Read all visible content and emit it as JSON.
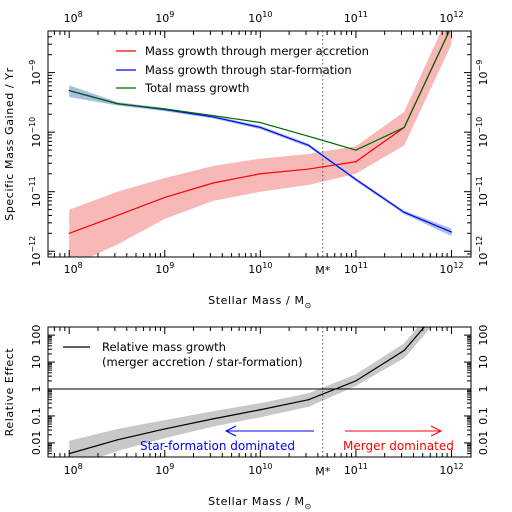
{
  "chart_data": [
    {
      "type": "line",
      "xlabel": "Stellar Mass / M",
      "xlabel_sub": "⊙",
      "ylabel": "Specific Mass Gained / Yr",
      "x_scale": "log",
      "y_scale": "log",
      "xlim": [
        60000000.0,
        1600000000000.0
      ],
      "ylim": [
        8e-13,
        5e-09
      ],
      "x_ticks": [
        {
          "value": 100000000.0,
          "base": "10",
          "exp": "8"
        },
        {
          "value": 1000000000.0,
          "base": "10",
          "exp": "9"
        },
        {
          "value": 10000000000.0,
          "base": "10",
          "exp": "10"
        },
        {
          "value": 100000000000.0,
          "base": "10",
          "exp": "11"
        },
        {
          "value": 1000000000000.0,
          "base": "10",
          "exp": "12"
        }
      ],
      "y_ticks": [
        {
          "value": 1e-12,
          "base": "10",
          "exp": "−12"
        },
        {
          "value": 1e-11,
          "base": "10",
          "exp": "−11"
        },
        {
          "value": 1e-10,
          "base": "10",
          "exp": "−10"
        },
        {
          "value": 1e-09,
          "base": "10",
          "exp": "−9"
        }
      ],
      "mstar_line": {
        "value": 45000000000.0,
        "label": "M*"
      },
      "legend": "top-center",
      "series": [
        {
          "name": "Mass growth through merger accretion",
          "color": "#ff0000",
          "band_color": "#f7b8b8",
          "x": [
            100000000.0,
            320000000.0,
            1000000000.0,
            3200000000.0,
            10000000000.0,
            32000000000.0,
            100000000000.0,
            320000000000.0,
            1000000000000.0
          ],
          "y": [
            2e-12,
            4e-12,
            8e-12,
            1.4e-11,
            2e-11,
            2.4e-11,
            3.2e-11,
            1.2e-10,
            6e-09
          ],
          "y_low": [
            5.5e-13,
            1.3e-12,
            3.5e-12,
            7e-12,
            1e-11,
            1.3e-11,
            2e-11,
            6e-11,
            3e-09
          ],
          "y_high": [
            5e-12,
            1e-11,
            1.7e-11,
            2.7e-11,
            3.6e-11,
            4.3e-11,
            5.8e-11,
            2.2e-10,
            1.2e-08
          ]
        },
        {
          "name": "Mass growth through star-formation",
          "color": "#0000ff",
          "band_color": "#a9bfe0",
          "x": [
            100000000.0,
            320000000.0,
            1000000000.0,
            3200000000.0,
            10000000000.0,
            32000000000.0,
            100000000000.0,
            320000000000.0,
            1000000000000.0
          ],
          "y": [
            5e-10,
            3e-10,
            2.4e-10,
            1.8e-10,
            1.2e-10,
            6e-11,
            1.6e-11,
            4.5e-12,
            2.1e-12
          ],
          "y_low": [
            3.9e-10,
            2.8e-10,
            2.25e-10,
            1.7e-10,
            1.12e-10,
            5.6e-11,
            1.5e-11,
            4.2e-12,
            1.8e-12
          ],
          "y_high": [
            6.1e-10,
            3.2e-10,
            2.55e-10,
            1.9e-10,
            1.28e-10,
            6.4e-11,
            1.7e-11,
            4.8e-12,
            2.4e-12
          ]
        },
        {
          "name": "Total mass growth",
          "color": "#006600",
          "x": [
            100000000.0,
            320000000.0,
            1000000000.0,
            3200000000.0,
            10000000000.0,
            32000000000.0,
            100000000000.0,
            320000000000.0,
            1000000000000.0
          ],
          "y": [
            5e-10,
            3e-10,
            2.45e-10,
            1.9e-10,
            1.45e-10,
            8.5e-11,
            5e-11,
            1.2e-10,
            6e-09
          ]
        }
      ]
    },
    {
      "type": "line",
      "xlabel": "Stellar Mass / M",
      "xlabel_sub": "⊙",
      "ylabel": "Relative Effect",
      "x_scale": "log",
      "y_scale": "log",
      "xlim": [
        60000000.0,
        1600000000000.0
      ],
      "ylim": [
        0.003,
        200
      ],
      "x_ticks": [
        {
          "value": 100000000.0,
          "base": "10",
          "exp": "8"
        },
        {
          "value": 1000000000.0,
          "base": "10",
          "exp": "9"
        },
        {
          "value": 10000000000.0,
          "base": "10",
          "exp": "10"
        },
        {
          "value": 100000000000.0,
          "base": "10",
          "exp": "11"
        },
        {
          "value": 1000000000000.0,
          "base": "10",
          "exp": "12"
        }
      ],
      "y_ticks": [
        {
          "value": 0.01,
          "label": "0.01"
        },
        {
          "value": 0.1,
          "label": "0.1"
        },
        {
          "value": 1,
          "label": "1"
        },
        {
          "value": 10,
          "label": "10"
        },
        {
          "value": 100,
          "label": "100"
        }
      ],
      "reference_line": 1,
      "mstar_line": {
        "value": 45000000000.0,
        "label": "M*"
      },
      "legend": "top-left",
      "series": [
        {
          "name": "Relative mass growth",
          "name_line2": "(merger accretion / star-formation)",
          "color": "#000000",
          "band_color": "#c8c8c8",
          "x": [
            100000000.0,
            320000000.0,
            1000000000.0,
            3200000000.0,
            10000000000.0,
            32000000000.0,
            100000000000.0,
            320000000000.0,
            1000000000000.0
          ],
          "y": [
            0.004,
            0.013,
            0.033,
            0.078,
            0.17,
            0.4,
            2.0,
            27,
            3000
          ],
          "y_low": [
            0.0012,
            0.005,
            0.015,
            0.04,
            0.09,
            0.22,
            1.3,
            14,
            1500
          ],
          "y_high": [
            0.012,
            0.033,
            0.07,
            0.15,
            0.3,
            0.7,
            3.5,
            50,
            6000
          ]
        }
      ],
      "annotations": [
        {
          "text": "Star-formation dominated",
          "color": "#0000ff",
          "arrow": "left"
        },
        {
          "text": "Merger dominated",
          "color": "#ff0000",
          "arrow": "right"
        }
      ]
    }
  ]
}
